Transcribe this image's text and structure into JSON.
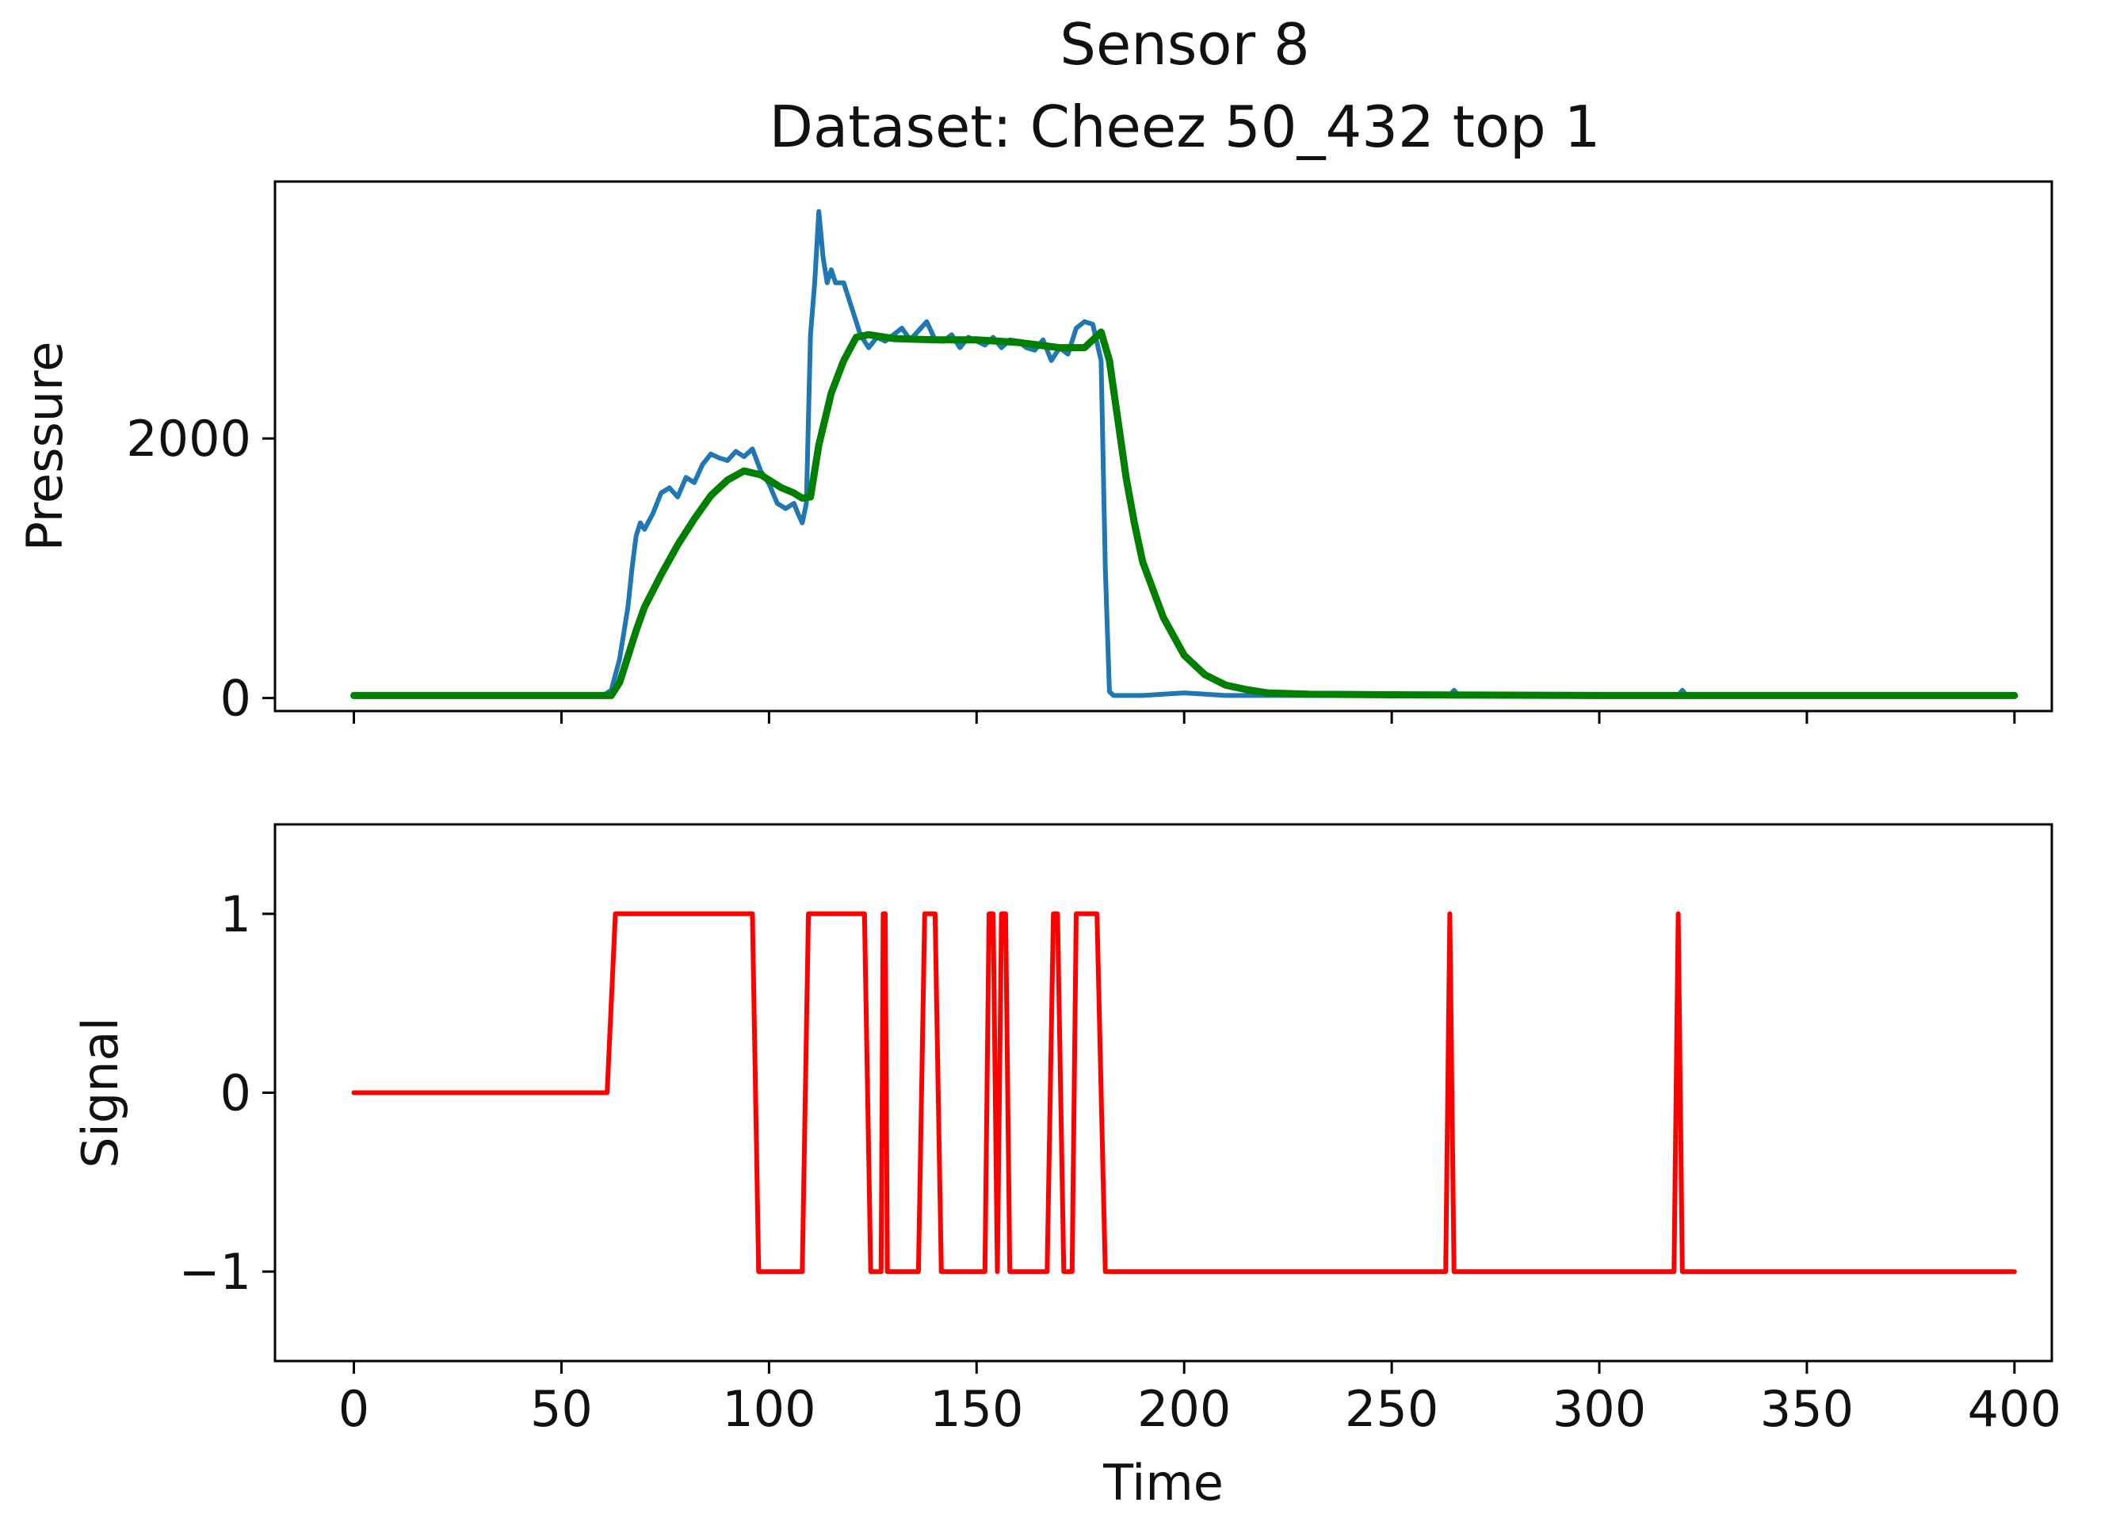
{
  "figure": {
    "title_line1": "Sensor 8",
    "title_line2": "Dataset: Cheez 50_432 top 1"
  },
  "chart_data": [
    {
      "type": "line",
      "ylabel": "Pressure",
      "xlabel": "",
      "xlim": [
        -19,
        409
      ],
      "ylim": [
        -100,
        3980
      ],
      "xticks": [
        0,
        50,
        100,
        150,
        200,
        250,
        300,
        350,
        400
      ],
      "x_tick_labels_visible": false,
      "yticks": [
        0,
        2000
      ],
      "ytick_labels": [
        "0",
        "2000"
      ],
      "grid": false,
      "legend": "none",
      "series": [
        {
          "color": "#1f77b4",
          "x": [
            0,
            60,
            62,
            64,
            66,
            67,
            68,
            69,
            70,
            72,
            74,
            76,
            78,
            80,
            82,
            84,
            86,
            88,
            90,
            92,
            94,
            96,
            98,
            100,
            102,
            104,
            106,
            107,
            108,
            109,
            110,
            111,
            112,
            113,
            114,
            115,
            116,
            118,
            120,
            122,
            124,
            126,
            128,
            130,
            132,
            134,
            136,
            138,
            140,
            142,
            144,
            146,
            148,
            150,
            152,
            154,
            156,
            158,
            160,
            162,
            164,
            166,
            168,
            170,
            172,
            174,
            176,
            178,
            180,
            181,
            182,
            183,
            185,
            190,
            200,
            210,
            230,
            264,
            265,
            266,
            300,
            319,
            320,
            321,
            400
          ],
          "y": [
            20,
            20,
            60,
            300,
            700,
            1000,
            1250,
            1350,
            1300,
            1420,
            1580,
            1620,
            1550,
            1700,
            1660,
            1800,
            1880,
            1850,
            1830,
            1900,
            1860,
            1920,
            1750,
            1650,
            1500,
            1460,
            1500,
            1420,
            1350,
            1500,
            2800,
            3200,
            3750,
            3400,
            3200,
            3300,
            3200,
            3200,
            3000,
            2800,
            2700,
            2780,
            2750,
            2800,
            2850,
            2760,
            2830,
            2900,
            2760,
            2750,
            2800,
            2700,
            2780,
            2750,
            2720,
            2780,
            2700,
            2760,
            2750,
            2700,
            2680,
            2760,
            2600,
            2700,
            2650,
            2850,
            2900,
            2880,
            2600,
            1000,
            50,
            20,
            20,
            20,
            40,
            20,
            20,
            20,
            60,
            20,
            20,
            20,
            60,
            20,
            20
          ]
        },
        {
          "color": "#007f00",
          "x": [
            0,
            62,
            64,
            66,
            68,
            70,
            74,
            78,
            82,
            86,
            90,
            94,
            98,
            100,
            103,
            106,
            108,
            110,
            112,
            115,
            118,
            121,
            124,
            130,
            140,
            150,
            160,
            170,
            176,
            180,
            182,
            184,
            186,
            188,
            190,
            195,
            200,
            205,
            210,
            215,
            220,
            230,
            250,
            300,
            400
          ],
          "y": [
            20,
            20,
            120,
            320,
            520,
            700,
            950,
            1180,
            1380,
            1560,
            1680,
            1750,
            1720,
            1680,
            1620,
            1580,
            1540,
            1550,
            1950,
            2350,
            2600,
            2780,
            2800,
            2770,
            2760,
            2760,
            2740,
            2700,
            2700,
            2820,
            2600,
            2150,
            1700,
            1350,
            1050,
            620,
            330,
            180,
            100,
            65,
            40,
            30,
            25,
            20,
            20
          ]
        }
      ]
    },
    {
      "type": "line",
      "xlabel": "Time",
      "ylabel": "Signal",
      "xlim": [
        -19,
        409
      ],
      "ylim": [
        -1.5,
        1.5
      ],
      "xticks": [
        0,
        50,
        100,
        150,
        200,
        250,
        300,
        350,
        400
      ],
      "xtick_labels": [
        "0",
        "50",
        "100",
        "150",
        "200",
        "250",
        "300",
        "350",
        "400"
      ],
      "yticks": [
        -1,
        0,
        1
      ],
      "ytick_labels": [
        "−1",
        "0",
        "1"
      ],
      "grid": false,
      "legend": "none",
      "series": [
        {
          "color": "#ff0000",
          "x": [
            0,
            61,
            63,
            96,
            97.5,
            108,
            109.5,
            123,
            124.5,
            127,
            127.5,
            128,
            128.5,
            136,
            137.5,
            140,
            141.5,
            152,
            153,
            154,
            155,
            156,
            157,
            158,
            159,
            167,
            168.5,
            169.5,
            171,
            173,
            174,
            179,
            181,
            263,
            264,
            265,
            318,
            319,
            320,
            400
          ],
          "y": [
            0,
            0,
            1,
            1,
            -1,
            -1,
            1,
            1,
            -1,
            -1,
            1,
            1,
            -1,
            -1,
            1,
            1,
            -1,
            -1,
            1,
            1,
            -1,
            1,
            1,
            -1,
            -1,
            -1,
            1,
            1,
            -1,
            -1,
            1,
            1,
            -1,
            -1,
            1,
            -1,
            -1,
            1,
            -1,
            -1
          ]
        }
      ]
    }
  ]
}
